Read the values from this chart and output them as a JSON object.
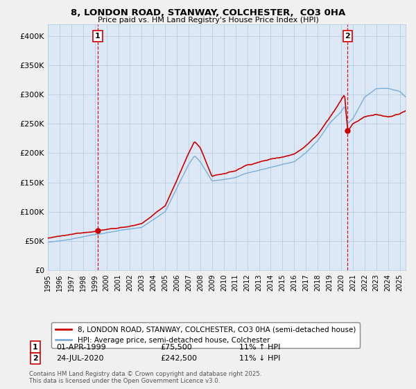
{
  "title_line1": "8, LONDON ROAD, STANWAY, COLCHESTER,  CO3 0HA",
  "title_line2": "Price paid vs. HM Land Registry's House Price Index (HPI)",
  "legend_label1": "8, LONDON ROAD, STANWAY, COLCHESTER, CO3 0HA (semi-detached house)",
  "legend_label2": "HPI: Average price, semi-detached house, Colchester",
  "annotation1": {
    "num": "1",
    "date": "01-APR-1999",
    "price": "£75,500",
    "pct": "11% ↑ HPI"
  },
  "annotation2": {
    "num": "2",
    "date": "24-JUL-2020",
    "price": "£242,500",
    "pct": "11% ↓ HPI"
  },
  "footnote": "Contains HM Land Registry data © Crown copyright and database right 2025.\nThis data is licensed under the Open Government Licence v3.0.",
  "line1_color": "#cc0000",
  "line2_color": "#7aaed6",
  "vline_color": "#cc0000",
  "ylim": [
    0,
    420000
  ],
  "yticks": [
    0,
    50000,
    100000,
    150000,
    200000,
    250000,
    300000,
    350000,
    400000
  ],
  "plot_bg": "#dce8f5",
  "bg_color": "#f0f0f0",
  "marker1_year": 1999.25,
  "marker1_val": 75500,
  "marker2_year": 2020.56,
  "marker2_val": 242500,
  "grid_color": "#b0c8e0",
  "spine_color": "#b0c8e0"
}
